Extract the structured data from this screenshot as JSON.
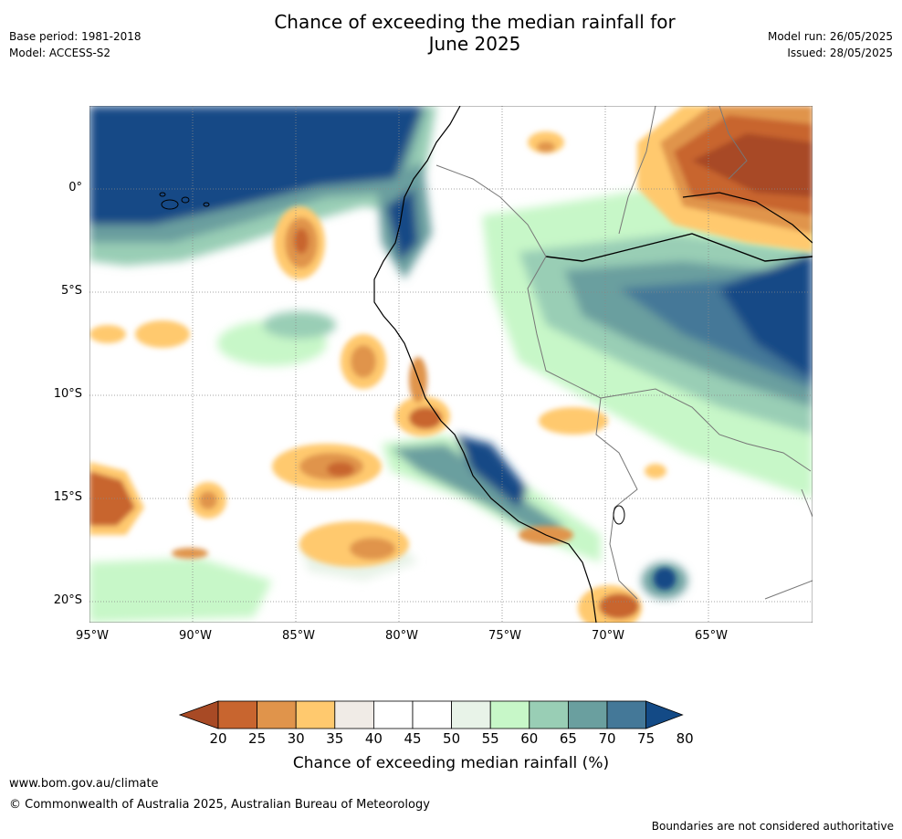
{
  "title_line1": "Chance of exceeding the median rainfall for",
  "title_line2": "June 2025",
  "meta": {
    "base_period": "Base period: 1981-2018",
    "model": "Model: ACCESS-S2",
    "model_run": "Model run: 26/05/2025",
    "issued": "Issued: 28/05/2025"
  },
  "lat_ticks": [
    "0°",
    "5°S",
    "10°S",
    "15°S",
    "20°S"
  ],
  "lon_ticks": [
    "95°W",
    "90°W",
    "85°W",
    "80°W",
    "75°W",
    "70°W",
    "65°W"
  ],
  "colorbar": {
    "ticks": [
      "20",
      "25",
      "30",
      "35",
      "40",
      "45",
      "50",
      "55",
      "60",
      "65",
      "70",
      "75",
      "80"
    ],
    "colors": [
      "#a84a25",
      "#c8652f",
      "#e0944b",
      "#ffc96e",
      "#f0ebe6",
      "#ffffff",
      "#ffffff",
      "#e8f3e8",
      "#c7f7c8",
      "#99ceb5",
      "#6a9f9f",
      "#447898",
      "#134a86"
    ],
    "label": "Chance of exceeding median rainfall (%)"
  },
  "footer": {
    "url": "www.bom.gov.au/climate",
    "copyright": "© Commonwealth of Australia 2025, Australian Bureau of Meteorology",
    "note": "Boundaries are not considered authoritative"
  }
}
